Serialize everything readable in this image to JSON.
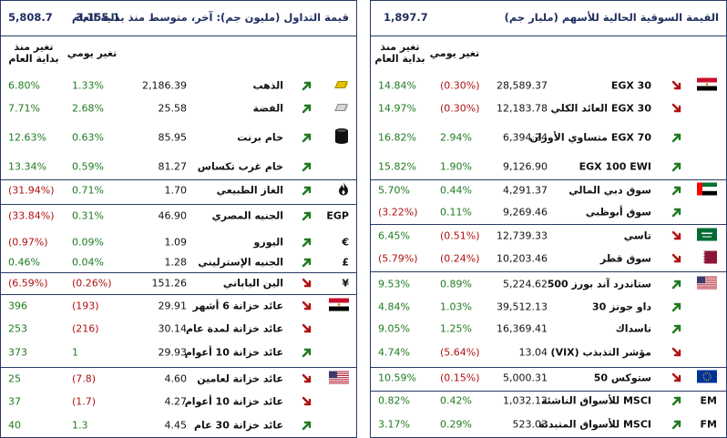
{
  "left": {
    "header": {
      "title": "قيمة التداول (مليون جم): آخر، متوسط منذ بداية العام",
      "last": "3,155.1",
      "avg": "5,808.7"
    },
    "columns": {
      "daily": "تغير يومي",
      "ytd_line1": "تغير منذ",
      "ytd_line2": "بداية العام"
    },
    "rows": [
      {
        "name": "الذهب",
        "value": "2,186.39",
        "daily": "1.33%",
        "ytd": "6.80%",
        "dir": "up",
        "daily_neg": false,
        "ytd_neg": false,
        "icon": "gold-icon"
      },
      {
        "name": "الفضة",
        "value": "25.58",
        "daily": "2.68%",
        "ytd": "7.71%",
        "dir": "up",
        "daily_neg": false,
        "ytd_neg": false,
        "icon": "silver-icon"
      },
      {
        "name": "خام برنت",
        "value": "85.95",
        "daily": "0.63%",
        "ytd": "12.63%",
        "dir": "up",
        "daily_neg": false,
        "ytd_neg": false,
        "icon": "oil-barrel-icon"
      },
      {
        "name": "خام غرب تكساس",
        "value": "81.27",
        "daily": "0.59%",
        "ytd": "13.34%",
        "dir": "up",
        "daily_neg": false,
        "ytd_neg": false,
        "icon": ""
      },
      {
        "name": "الغاز الطبيعي",
        "value": "1.70",
        "daily": "0.71%",
        "ytd": "(31.94%)",
        "dir": "up",
        "daily_neg": false,
        "ytd_neg": true,
        "icon": "flame-icon"
      },
      {
        "name": "الجنيه المصري",
        "value": "46.90",
        "daily": "0.31%",
        "ytd": "(33.84%)",
        "dir": "up",
        "daily_neg": false,
        "ytd_neg": true,
        "icon": "EGP"
      },
      {
        "name": "اليورو",
        "value": "1.09",
        "daily": "0.09%",
        "ytd": "(0.97%)",
        "dir": "up",
        "daily_neg": false,
        "ytd_neg": true,
        "icon": "€"
      },
      {
        "name": "الجنيه الإسترليني",
        "value": "1.28",
        "daily": "0.04%",
        "ytd": "0.46%",
        "dir": "up",
        "daily_neg": false,
        "ytd_neg": false,
        "icon": "£"
      },
      {
        "name": "الين الياباني",
        "value": "151.26",
        "daily": "(0.26%)",
        "ytd": "(6.59%)",
        "dir": "down",
        "daily_neg": true,
        "ytd_neg": true,
        "icon": "¥"
      },
      {
        "name": "عائد خزانة 6 أشهر",
        "value": "29.91",
        "daily": "(193)",
        "ytd": "396",
        "dir": "down",
        "daily_neg": true,
        "ytd_neg": false,
        "icon": "egypt-flag-icon"
      },
      {
        "name": "عائد خزانة لمدة عام",
        "value": "30.14",
        "daily": "(216)",
        "ytd": "253",
        "dir": "down",
        "daily_neg": true,
        "ytd_neg": false,
        "icon": ""
      },
      {
        "name": "عائد خزانة 10 أعوام",
        "value": "29.93",
        "daily": "1",
        "ytd": "373",
        "dir": "up",
        "daily_neg": false,
        "ytd_neg": false,
        "icon": ""
      },
      {
        "name": "عائد خزانة لعامين",
        "value": "4.60",
        "daily": "(7.8)",
        "ytd": "25",
        "dir": "down",
        "daily_neg": true,
        "ytd_neg": false,
        "icon": "usa-flag-icon"
      },
      {
        "name": "عائد خزانة 10 أعوام",
        "value": "4.27",
        "daily": "(1.7)",
        "ytd": "37",
        "dir": "down",
        "daily_neg": true,
        "ytd_neg": false,
        "icon": ""
      },
      {
        "name": "عائد خزانة 30 عام",
        "value": "4.45",
        "daily": "1.3",
        "ytd": "40",
        "dir": "up",
        "daily_neg": false,
        "ytd_neg": false,
        "icon": ""
      }
    ]
  },
  "right": {
    "header": {
      "title": "القيمة السوقية الحالية للأسهم (مليار جم)",
      "value": "1,897.7"
    },
    "columns": {
      "daily": "تغير يومي",
      "ytd_line1": "تغير منذ",
      "ytd_line2": "بداية العام"
    },
    "rows": [
      {
        "name": "EGX 30",
        "value": "28,589.37",
        "daily": "(0.30%)",
        "ytd": "14.84%",
        "dir": "down",
        "daily_neg": true,
        "ytd_neg": false,
        "icon": "egypt-flag-icon"
      },
      {
        "name": "EGX 30 العائد الكلي",
        "value": "12,183.78",
        "daily": "(0.30%)",
        "ytd": "14.97%",
        "dir": "down",
        "daily_neg": true,
        "ytd_neg": false,
        "icon": ""
      },
      {
        "name": "EGX 70 متساوي الأوزان",
        "value": "6,394.24",
        "daily": "2.94%",
        "ytd": "16.82%",
        "dir": "up",
        "daily_neg": false,
        "ytd_neg": false,
        "icon": ""
      },
      {
        "name": "EGX 100 EWI",
        "value": "9,126.90",
        "daily": "1.90%",
        "ytd": "15.82%",
        "dir": "up",
        "daily_neg": false,
        "ytd_neg": false,
        "icon": ""
      },
      {
        "name": "سوق دبي المالي",
        "value": "4,291.37",
        "daily": "0.44%",
        "ytd": "5.70%",
        "dir": "up",
        "daily_neg": false,
        "ytd_neg": false,
        "icon": "uae-flag-icon"
      },
      {
        "name": "سوق أبوظبي",
        "value": "9,269.46",
        "daily": "0.11%",
        "ytd": "(3.22%)",
        "dir": "up",
        "daily_neg": false,
        "ytd_neg": true,
        "icon": ""
      },
      {
        "name": "تاسي",
        "value": "12,739.33",
        "daily": "(0.51%)",
        "ytd": "6.45%",
        "dir": "down",
        "daily_neg": true,
        "ytd_neg": false,
        "icon": "saudi-flag-icon"
      },
      {
        "name": "سوق قطر",
        "value": "10,203.46",
        "daily": "(0.24%)",
        "ytd": "(5.79%)",
        "dir": "down",
        "daily_neg": true,
        "ytd_neg": true,
        "icon": "qatar-flag-icon"
      },
      {
        "name": "ستاندرد آند بورز 500",
        "value": "5,224.62",
        "daily": "0.89%",
        "ytd": "9.53%",
        "dir": "up",
        "daily_neg": false,
        "ytd_neg": false,
        "icon": "usa-flag-icon"
      },
      {
        "name": "داو جونز 30",
        "value": "39,512.13",
        "daily": "1.03%",
        "ytd": "4.84%",
        "dir": "up",
        "daily_neg": false,
        "ytd_neg": false,
        "icon": ""
      },
      {
        "name": "ناسداك",
        "value": "16,369.41",
        "daily": "1.25%",
        "ytd": "9.05%",
        "dir": "up",
        "daily_neg": false,
        "ytd_neg": false,
        "icon": ""
      },
      {
        "name": "مؤشر التذبذب (VIX)",
        "value": "13.04",
        "daily": "(5.64%)",
        "ytd": "4.74%",
        "dir": "down",
        "daily_neg": true,
        "ytd_neg": false,
        "icon": ""
      },
      {
        "name": "ستوكس 50",
        "value": "5,000.31",
        "daily": "(0.15%)",
        "ytd": "10.59%",
        "dir": "down",
        "daily_neg": true,
        "ytd_neg": false,
        "icon": "eu-flag-icon"
      },
      {
        "name": "MSCI للأسواق الناشئة",
        "value": "1,032.12",
        "daily": "0.42%",
        "ytd": "0.82%",
        "dir": "up",
        "daily_neg": false,
        "ytd_neg": false,
        "icon": "EM"
      },
      {
        "name": "MSCI للأسواق المتبدئة",
        "value": "523.03",
        "daily": "0.29%",
        "ytd": "3.17%",
        "dir": "up",
        "daily_neg": false,
        "ytd_neg": false,
        "icon": "FM"
      }
    ]
  },
  "colors": {
    "positive": "#1f7a1f",
    "negative": "#b01010",
    "header_text": "#1f2e5e",
    "border": "#2a3a67"
  }
}
